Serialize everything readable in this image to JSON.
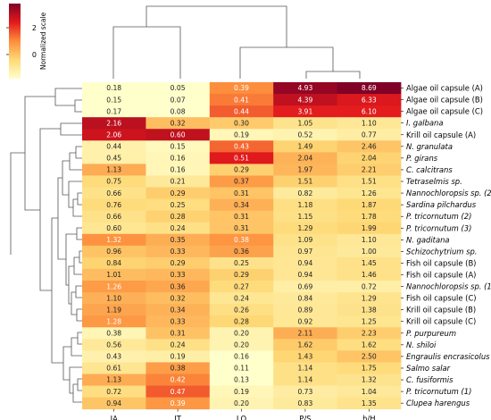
{
  "chart_data": {
    "type": "heatmap",
    "colorbar": {
      "label": "Normalized scale",
      "ticks": [
        "2",
        "0"
      ]
    },
    "columns": [
      "IA",
      "IT",
      "LQ",
      "P/S",
      "h/H"
    ],
    "rows": [
      {
        "name": "Algae oil capsule (A)",
        "italic": false,
        "values": [
          "0.18",
          "0.05",
          "0.39",
          "4.93",
          "8.69"
        ]
      },
      {
        "name": "Algae oil capsule (B)",
        "italic": false,
        "values": [
          "0.15",
          "0.07",
          "0.41",
          "4.39",
          "6.33"
        ]
      },
      {
        "name": "Algae oil capsule (C)",
        "italic": false,
        "values": [
          "0.17",
          "0.08",
          "0.44",
          "3.91",
          "6.10"
        ]
      },
      {
        "name": "I. galbana",
        "italic": true,
        "values": [
          "2.16",
          "0.32",
          "0.30",
          "1.05",
          "1.10"
        ]
      },
      {
        "name": "Krill oil capsule (A)",
        "italic": false,
        "values": [
          "2.06",
          "0.60",
          "0.19",
          "0.52",
          "0.77"
        ]
      },
      {
        "name": "N. granulata",
        "italic": true,
        "values": [
          "0.44",
          "0.15",
          "0.43",
          "1.49",
          "2.46"
        ]
      },
      {
        "name": "P. girans",
        "italic": true,
        "values": [
          "0.45",
          "0.16",
          "0.51",
          "2.04",
          "2.04"
        ]
      },
      {
        "name": "C. calcitrans",
        "italic": true,
        "values": [
          "1.13",
          "0.16",
          "0.29",
          "1.97",
          "2.21"
        ]
      },
      {
        "name": "Tetraselmis sp.",
        "italic": true,
        "values": [
          "0.75",
          "0.21",
          "0.37",
          "1.51",
          "1.51"
        ]
      },
      {
        "name": "Nannochloropsis sp. (2)",
        "italic": true,
        "values": [
          "0.66",
          "0.29",
          "0.31",
          "0.82",
          "1.26"
        ]
      },
      {
        "name": "Sardina pilchardus",
        "italic": true,
        "values": [
          "0.76",
          "0.25",
          "0.34",
          "1.18",
          "1.87"
        ]
      },
      {
        "name": "P. tricornutum (2)",
        "italic": true,
        "values": [
          "0.66",
          "0.28",
          "0.31",
          "1.15",
          "1.78"
        ]
      },
      {
        "name": "P. tricornutum (3)",
        "italic": true,
        "values": [
          "0.60",
          "0.24",
          "0.31",
          "1.29",
          "1.99"
        ]
      },
      {
        "name": "N. gaditana",
        "italic": true,
        "values": [
          "1.32",
          "0.35",
          "0.38",
          "1.09",
          "1.10"
        ]
      },
      {
        "name": "Schizochytrium sp.",
        "italic": true,
        "values": [
          "0.96",
          "0.33",
          "0.36",
          "0.97",
          "1.00"
        ]
      },
      {
        "name": "Fish oil capsule (B)",
        "italic": false,
        "values": [
          "0.84",
          "0.29",
          "0.25",
          "0.94",
          "1.45"
        ]
      },
      {
        "name": "Fish oil capsule (A)",
        "italic": false,
        "values": [
          "1.01",
          "0.33",
          "0.29",
          "0.94",
          "1.46"
        ]
      },
      {
        "name": "Nannochloropsis sp. (1)",
        "italic": true,
        "values": [
          "1.26",
          "0.36",
          "0.27",
          "0.69",
          "0.72"
        ]
      },
      {
        "name": "Fish oil capsule (C)",
        "italic": false,
        "values": [
          "1.10",
          "0.32",
          "0.24",
          "0.84",
          "1.29"
        ]
      },
      {
        "name": "Krill oil capsule (B)",
        "italic": false,
        "values": [
          "1.19",
          "0.34",
          "0.26",
          "0.89",
          "1.38"
        ]
      },
      {
        "name": "Krill oil capsule (C)",
        "italic": false,
        "values": [
          "1.28",
          "0.33",
          "0.28",
          "0.92",
          "1.25"
        ]
      },
      {
        "name": "P. purpureum",
        "italic": true,
        "values": [
          "0.38",
          "0.31",
          "0.20",
          "2.11",
          "2.23"
        ]
      },
      {
        "name": "N. shiloi",
        "italic": true,
        "values": [
          "0.56",
          "0.24",
          "0.20",
          "1.62",
          "1.62"
        ]
      },
      {
        "name": "Engraulis encrasicolus",
        "italic": true,
        "values": [
          "0.43",
          "0.19",
          "0.16",
          "1.43",
          "2.50"
        ]
      },
      {
        "name": "Salmo salar",
        "italic": true,
        "values": [
          "0.61",
          "0.38",
          "0.11",
          "1.14",
          "1.75"
        ]
      },
      {
        "name": "C. fusiformis",
        "italic": true,
        "values": [
          "1.13",
          "0.42",
          "0.13",
          "1.14",
          "1.32"
        ]
      },
      {
        "name": "P. tricornutum (1)",
        "italic": true,
        "values": [
          "0.72",
          "0.47",
          "0.19",
          "0.73",
          "1.04"
        ]
      },
      {
        "name": "Clupea harengus",
        "italic": true,
        "values": [
          "0.94",
          "0.39",
          "0.20",
          "0.83",
          "1.35"
        ]
      }
    ]
  }
}
